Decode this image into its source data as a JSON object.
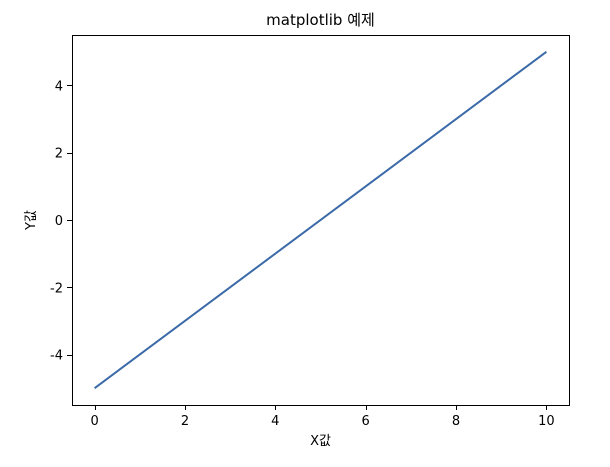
{
  "chart_data": {
    "type": "line",
    "title": "matplotlib 예제",
    "xlabel": "X값",
    "ylabel": "Y값",
    "xlim": [
      -0.5,
      10.5
    ],
    "ylim": [
      -5.5,
      5.5
    ],
    "x_ticks": [
      0,
      2,
      4,
      6,
      8,
      10
    ],
    "y_ticks": [
      -4,
      -2,
      0,
      2,
      4
    ],
    "grid": false,
    "series": [
      {
        "color": "#3b6aa8",
        "x": [
          0,
          10
        ],
        "y": [
          -5,
          5
        ]
      }
    ]
  }
}
